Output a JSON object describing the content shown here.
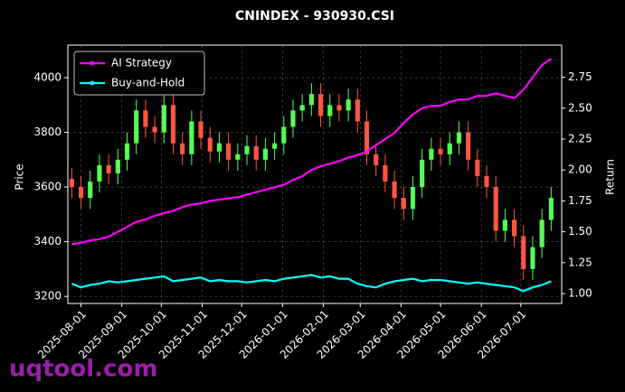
{
  "chart_data": {
    "type": "candlestick",
    "title": "CNINDEX - 930930.CSI",
    "y_label": "Price",
    "y2_label": "Return",
    "watermark": "uqtool.com",
    "x": [
      "2025-07-25",
      "2025-08-01",
      "2025-08-08",
      "2025-08-15",
      "2025-08-22",
      "2025-08-29",
      "2025-09-05",
      "2025-09-12",
      "2025-09-19",
      "2025-09-26",
      "2025-10-03",
      "2025-10-10",
      "2025-10-17",
      "2025-10-24",
      "2025-10-31",
      "2025-11-07",
      "2025-11-14",
      "2025-11-21",
      "2025-11-28",
      "2025-12-05",
      "2025-12-12",
      "2025-12-19",
      "2025-12-26",
      "2026-01-02",
      "2026-01-09",
      "2026-01-16",
      "2026-01-23",
      "2026-01-30",
      "2026-02-06",
      "2026-02-13",
      "2026-02-20",
      "2026-02-27",
      "2026-03-06",
      "2026-03-13",
      "2026-03-20",
      "2026-03-27",
      "2026-04-03",
      "2026-04-10",
      "2026-04-17",
      "2026-04-24",
      "2026-05-01",
      "2026-05-08",
      "2026-05-15",
      "2026-05-22",
      "2026-05-29",
      "2026-06-05",
      "2026-06-12",
      "2026-06-19",
      "2026-06-26",
      "2026-07-03",
      "2026-07-10",
      "2026-07-17",
      "2026-07-24"
    ],
    "open": [
      3630,
      3600,
      3560,
      3620,
      3680,
      3650,
      3700,
      3760,
      3880,
      3820,
      3800,
      3900,
      3760,
      3720,
      3840,
      3780,
      3730,
      3760,
      3700,
      3720,
      3750,
      3700,
      3740,
      3760,
      3820,
      3880,
      3900,
      3940,
      3860,
      3900,
      3880,
      3920,
      3840,
      3720,
      3680,
      3620,
      3560,
      3520,
      3600,
      3700,
      3740,
      3720,
      3760,
      3800,
      3700,
      3640,
      3600,
      3440,
      3480,
      3420,
      3300,
      3380,
      3480
    ],
    "high": [
      3670,
      3640,
      3660,
      3720,
      3720,
      3740,
      3800,
      3920,
      3920,
      3860,
      3940,
      3940,
      3800,
      3880,
      3880,
      3820,
      3800,
      3800,
      3760,
      3790,
      3790,
      3780,
      3800,
      3860,
      3920,
      3940,
      3980,
      3980,
      3940,
      3940,
      3960,
      3960,
      3880,
      3760,
      3720,
      3660,
      3600,
      3640,
      3740,
      3780,
      3780,
      3800,
      3840,
      3840,
      3740,
      3680,
      3640,
      3520,
      3520,
      3460,
      3420,
      3520,
      3600
    ],
    "low": [
      3560,
      3520,
      3520,
      3580,
      3610,
      3610,
      3660,
      3720,
      3780,
      3760,
      3760,
      3720,
      3680,
      3680,
      3740,
      3690,
      3690,
      3660,
      3660,
      3680,
      3660,
      3660,
      3700,
      3720,
      3780,
      3840,
      3860,
      3820,
      3820,
      3840,
      3840,
      3800,
      3680,
      3640,
      3580,
      3520,
      3480,
      3480,
      3560,
      3660,
      3680,
      3680,
      3720,
      3660,
      3600,
      3560,
      3400,
      3400,
      3380,
      3260,
      3260,
      3340,
      3440
    ],
    "close": [
      3600,
      3560,
      3620,
      3680,
      3650,
      3700,
      3760,
      3880,
      3820,
      3800,
      3900,
      3760,
      3720,
      3840,
      3780,
      3730,
      3760,
      3700,
      3720,
      3750,
      3700,
      3740,
      3760,
      3820,
      3880,
      3900,
      3940,
      3860,
      3900,
      3880,
      3920,
      3840,
      3720,
      3680,
      3620,
      3560,
      3520,
      3600,
      3700,
      3740,
      3720,
      3760,
      3800,
      3700,
      3640,
      3600,
      3440,
      3480,
      3420,
      3300,
      3380,
      3480,
      3560
    ],
    "up_color": "#55ff55",
    "down_color": "#ff5544",
    "series": [
      {
        "name": "AI Strategy",
        "color": "#ff00ff",
        "axis": "y2",
        "values": [
          1.4,
          1.41,
          1.43,
          1.44,
          1.46,
          1.5,
          1.54,
          1.58,
          1.6,
          1.63,
          1.65,
          1.67,
          1.7,
          1.72,
          1.73,
          1.75,
          1.76,
          1.77,
          1.78,
          1.8,
          1.82,
          1.84,
          1.86,
          1.88,
          1.92,
          1.95,
          2.0,
          2.03,
          2.05,
          2.07,
          2.1,
          2.12,
          2.15,
          2.2,
          2.25,
          2.3,
          2.38,
          2.45,
          2.5,
          2.52,
          2.52,
          2.55,
          2.57,
          2.57,
          2.6,
          2.6,
          2.62,
          2.6,
          2.58,
          2.65,
          2.75,
          2.85,
          2.9
        ]
      },
      {
        "name": "Buy-and-Hold",
        "color": "#00ffff",
        "axis": "y2",
        "values": [
          1.08,
          1.05,
          1.07,
          1.08,
          1.1,
          1.09,
          1.1,
          1.11,
          1.12,
          1.13,
          1.14,
          1.1,
          1.11,
          1.12,
          1.13,
          1.1,
          1.11,
          1.1,
          1.1,
          1.09,
          1.1,
          1.11,
          1.1,
          1.12,
          1.13,
          1.14,
          1.15,
          1.13,
          1.14,
          1.12,
          1.12,
          1.08,
          1.06,
          1.05,
          1.08,
          1.1,
          1.11,
          1.12,
          1.1,
          1.11,
          1.11,
          1.1,
          1.09,
          1.08,
          1.09,
          1.08,
          1.07,
          1.06,
          1.05,
          1.02,
          1.05,
          1.07,
          1.1
        ]
      }
    ],
    "xlim": [
      "2025-07-22",
      "2026-08-01"
    ],
    "xticks": [
      "2025-08-01",
      "2025-09-01",
      "2025-10-01",
      "2025-11-01",
      "2025-12-01",
      "2026-01-01",
      "2026-02-01",
      "2026-03-01",
      "2026-04-01",
      "2026-05-01",
      "2026-06-01",
      "2026-07-01"
    ],
    "ylim": [
      3174,
      4119
    ],
    "yticks": [
      3200,
      3400,
      3600,
      3800,
      4000
    ],
    "y2lim": [
      0.92,
      3.01
    ],
    "y2ticks": [
      {
        "value": 1,
        "label": "1.00"
      },
      1.25,
      {
        "value": 1.5,
        "label": "1.50"
      },
      1.75,
      {
        "value": 2,
        "label": "2.00"
      },
      2.25,
      {
        "value": 2.5,
        "label": "2.50"
      },
      2.75
    ],
    "grid": true,
    "legend": "upper left"
  }
}
